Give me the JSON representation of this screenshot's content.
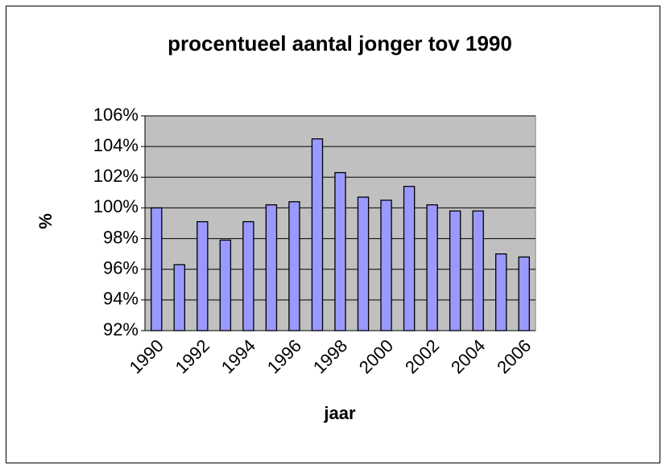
{
  "chart_data": {
    "type": "bar",
    "title": "procentueel aantal jonger tov 1990",
    "x_label": "jaar",
    "y_label": "%",
    "categories": [
      "1990",
      null,
      "1992",
      null,
      "1994",
      null,
      "1996",
      null,
      "1998",
      null,
      "2000",
      null,
      "2002",
      null,
      "2004",
      null,
      "2006"
    ],
    "values": [
      100.0,
      96.3,
      99.1,
      97.9,
      99.1,
      100.2,
      100.4,
      104.5,
      102.3,
      100.7,
      100.5,
      101.4,
      100.2,
      99.8,
      99.8,
      97.0,
      96.8
    ],
    "color": "#9999ff",
    "ylim": [
      92,
      106
    ],
    "yticks": [
      {
        "value": 92,
        "label": "92%"
      },
      {
        "value": 94,
        "label": "94%"
      },
      {
        "value": 96,
        "label": "96%"
      },
      {
        "value": 98,
        "label": "98%"
      },
      {
        "value": 100,
        "label": "100%"
      },
      {
        "value": 102,
        "label": "102%"
      },
      {
        "value": 104,
        "label": "104%"
      },
      {
        "value": 106,
        "label": "106%"
      }
    ],
    "grid": true
  }
}
